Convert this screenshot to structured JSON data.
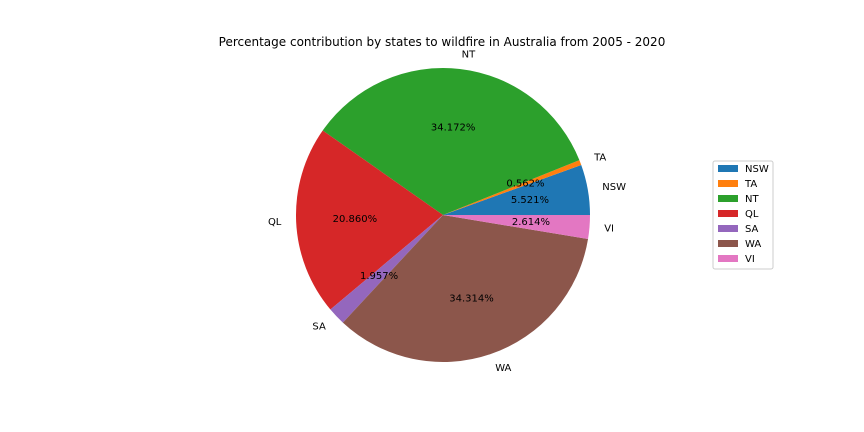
{
  "chart_data": {
    "type": "pie",
    "title": "Percentage contribution by states to wildfire in Australia from 2005 - 2020",
    "slices": [
      {
        "label": "NSW",
        "value": 5.521,
        "pct_text": "5.521%",
        "color": "#1f77b4"
      },
      {
        "label": "TA",
        "value": 0.562,
        "pct_text": "0.562%",
        "color": "#ff7f0e"
      },
      {
        "label": "NT",
        "value": 34.172,
        "pct_text": "34.172%",
        "color": "#2ca02c"
      },
      {
        "label": "QL",
        "value": 20.86,
        "pct_text": "20.860%",
        "color": "#d62728"
      },
      {
        "label": "SA",
        "value": 1.957,
        "pct_text": "1.957%",
        "color": "#9467bd"
      },
      {
        "label": "WA",
        "value": 34.314,
        "pct_text": "34.314%",
        "color": "#8c564b"
      },
      {
        "label": "VI",
        "value": 2.614,
        "pct_text": "2.614%",
        "color": "#e377c2"
      }
    ],
    "start_angle_deg": 0,
    "direction": "counterclockwise",
    "legend_position": "right"
  }
}
